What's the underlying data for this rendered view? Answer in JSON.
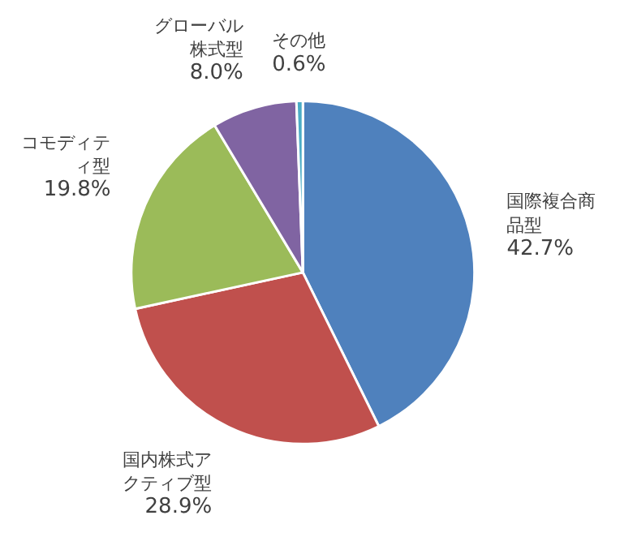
{
  "chart_data": {
    "type": "pie",
    "categories": [
      "国際複合商品型",
      "国内株式アクティブ型",
      "コモディティ型",
      "グローバル株式型",
      "その他"
    ],
    "values": [
      42.7,
      28.9,
      19.8,
      8.0,
      0.6
    ],
    "value_labels": [
      "42.7%",
      "28.9%",
      "19.8%",
      "8.0%",
      "0.6%"
    ],
    "colors": [
      "#4f81bd",
      "#c0504d",
      "#9bbb59",
      "#8064a2",
      "#4bacc6"
    ]
  }
}
